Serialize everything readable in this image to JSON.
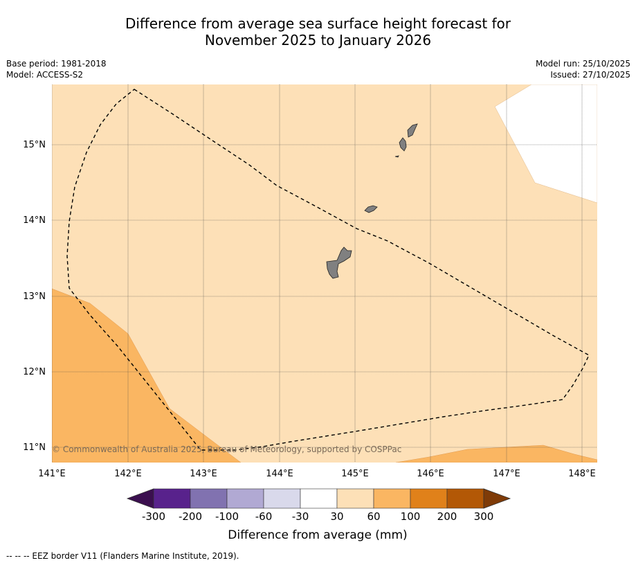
{
  "title": {
    "line1": "Difference from average sea surface height forecast for",
    "line2": "November 2025 to January 2026"
  },
  "meta": {
    "base_period": "Base period: 1981-2018",
    "model": "Model: ACCESS-S2",
    "model_run": "Model run: 25/10/2025",
    "issued": "Issued: 27/10/2025"
  },
  "map": {
    "lon_labels": [
      "141°E",
      "142°E",
      "143°E",
      "144°E",
      "145°E",
      "146°E",
      "147°E",
      "148°E"
    ],
    "lat_labels": [
      "15°N",
      "14°N",
      "13°N",
      "12°N",
      "11°N"
    ],
    "copyright": "© Commonwealth of Australia 2025, Bureau of Meteorology, supported by COSPPac",
    "islands": [
      "Guam",
      "Rota",
      "Tinian",
      "Saipan"
    ],
    "ocean_band": "30 to 60",
    "southwest_band": "60 to 100",
    "south_band": "60 to 100",
    "border_name": "EEZ border"
  },
  "colorbar": {
    "tick_labels": [
      "-300",
      "-200",
      "-100",
      "-60",
      "-30",
      "30",
      "60",
      "100",
      "200",
      "300"
    ],
    "label": "Difference from average (mm)",
    "colors": [
      "#3b0f4f",
      "#58228c",
      "#8172b0",
      "#b1a9d3",
      "#d9d9eb",
      "#ffffff",
      "#fde0b7",
      "#fab662",
      "#e0811a",
      "#b35806",
      "#7f3b08"
    ]
  },
  "footnote": "--  --  -- EEZ border V11 (Flanders Marine Institute, 2019)."
}
